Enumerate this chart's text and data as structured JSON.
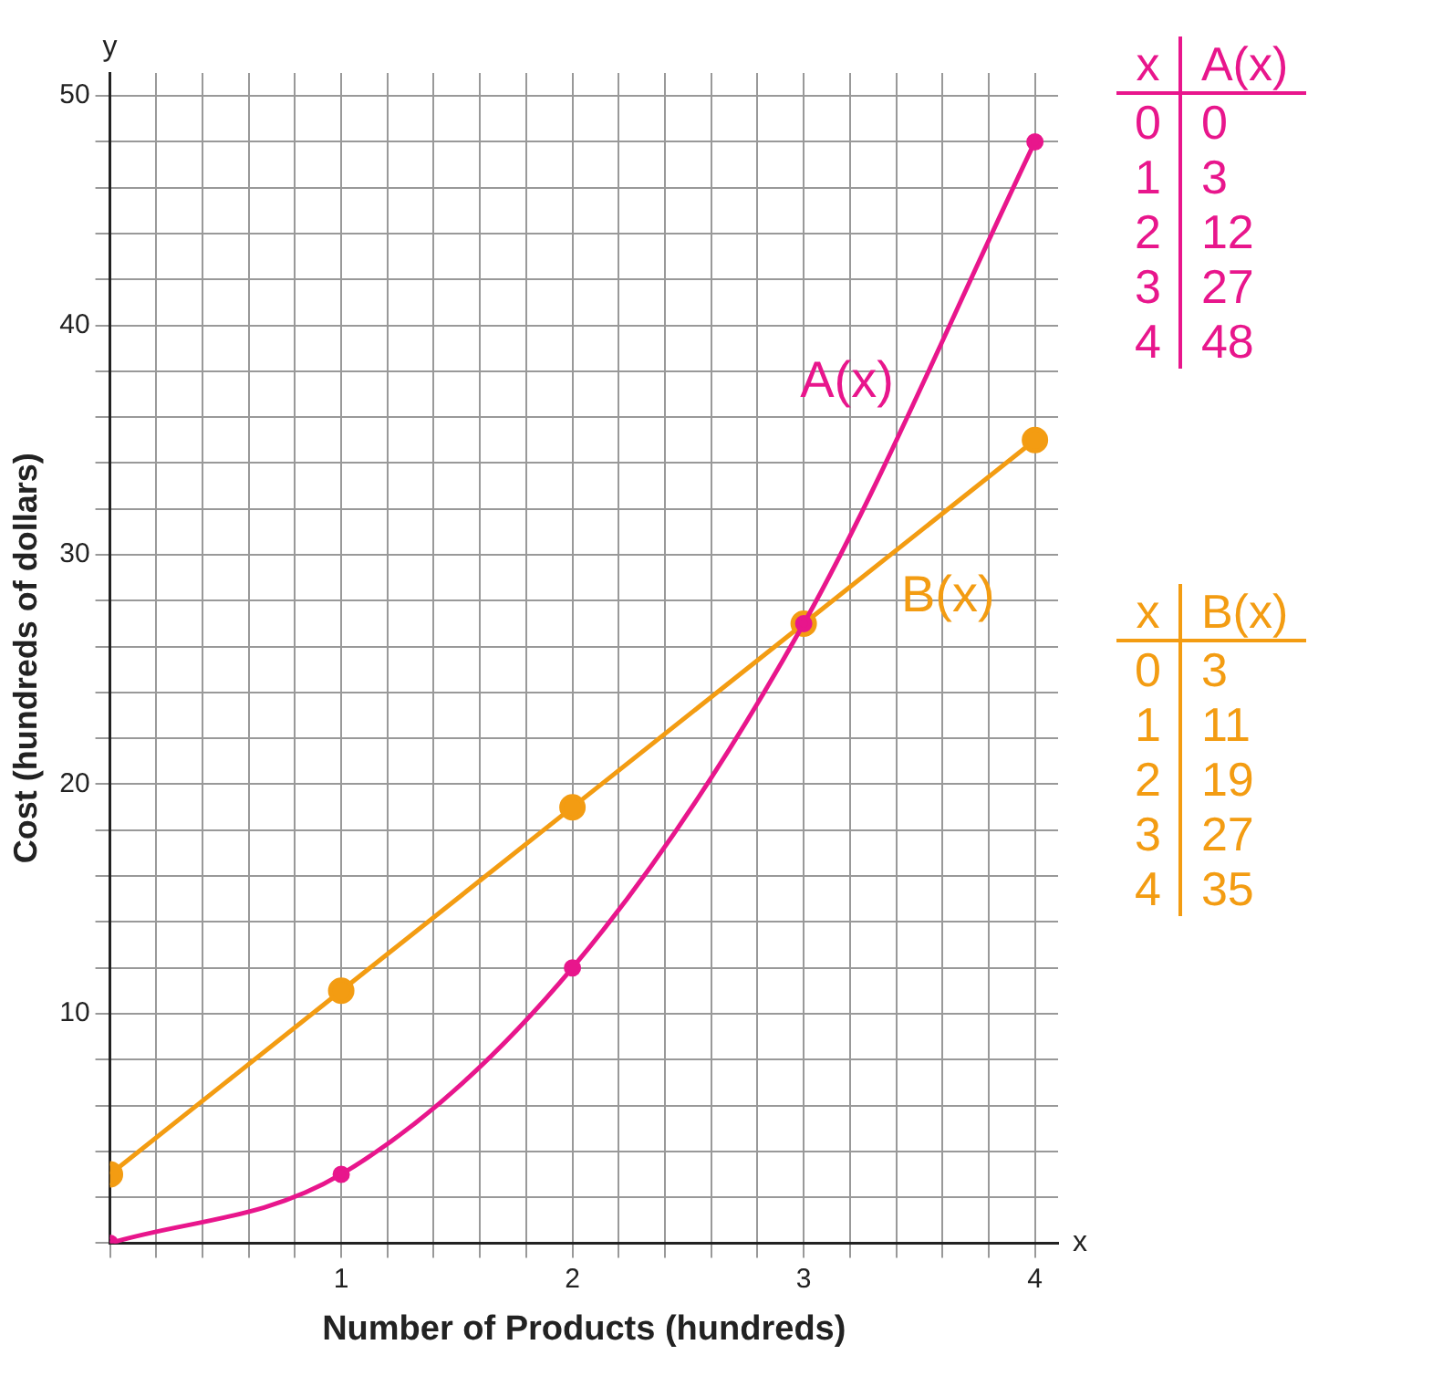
{
  "chart_data": {
    "type": "line",
    "xlabel": "Number of Products (hundreds)",
    "ylabel": "Cost (hundreds of dollars)",
    "annotations": [
      "y",
      "x",
      "x",
      "A(x)",
      "0",
      "0",
      "1",
      "3",
      "2",
      "12",
      "3",
      "27",
      "4",
      "48",
      "x",
      "B(x)",
      "0",
      "3",
      "1",
      "11",
      "2",
      "19",
      "3",
      "27",
      "4",
      "35"
    ],
    "x": [
      0,
      1,
      2,
      3,
      4
    ],
    "series": [
      {
        "name": "A(x)",
        "color": "#e8168c",
        "values": [
          0,
          3,
          12,
          27,
          48
        ]
      },
      {
        "name": "B(x)",
        "color": "#f39c12",
        "values": [
          3,
          11,
          19,
          27,
          35
        ]
      }
    ],
    "xlim": [
      0,
      4.1
    ],
    "ylim": [
      0,
      51
    ],
    "xticks": [
      {
        "value": 0,
        "label": null
      },
      {
        "value": 0.2,
        "label": null
      },
      {
        "value": 0.4,
        "label": null
      },
      {
        "value": 0.6,
        "label": null
      },
      {
        "value": 0.8,
        "label": null
      },
      1,
      {
        "value": 1.2,
        "label": null
      },
      {
        "value": 1.4,
        "label": null
      },
      {
        "value": 1.6,
        "label": null
      },
      {
        "value": 1.8,
        "label": null
      },
      2,
      {
        "value": 2.2,
        "label": null
      },
      {
        "value": 2.4,
        "label": null
      },
      {
        "value": 2.6,
        "label": null
      },
      {
        "value": 2.8,
        "label": null
      },
      3,
      {
        "value": 3.2,
        "label": null
      },
      {
        "value": 3.4,
        "label": null
      },
      {
        "value": 3.6,
        "label": null
      },
      {
        "value": 3.8,
        "label": null
      },
      4
    ],
    "yticks": [
      {
        "value": 0,
        "label": null
      },
      {
        "value": 2,
        "label": null
      },
      {
        "value": 4,
        "label": null
      },
      {
        "value": 6,
        "label": null
      },
      {
        "value": 8,
        "label": null
      },
      10,
      {
        "value": 12,
        "label": null
      },
      {
        "value": 14,
        "label": null
      },
      {
        "value": 16,
        "label": null
      },
      {
        "value": 18,
        "label": null
      },
      20,
      {
        "value": 22,
        "label": null
      },
      {
        "value": 24,
        "label": null
      },
      {
        "value": 26,
        "label": null
      },
      {
        "value": 28,
        "label": null
      },
      30,
      {
        "value": 32,
        "label": null
      },
      {
        "value": 34,
        "label": null
      },
      {
        "value": 36,
        "label": null
      },
      {
        "value": 38,
        "label": null
      },
      40,
      {
        "value": 42,
        "label": null
      },
      {
        "value": 44,
        "label": null
      },
      {
        "value": 46,
        "label": null
      },
      {
        "value": 48,
        "label": null
      },
      50
    ],
    "grid": true,
    "legend": false,
    "marker": "circle",
    "line_style": "solid"
  }
}
